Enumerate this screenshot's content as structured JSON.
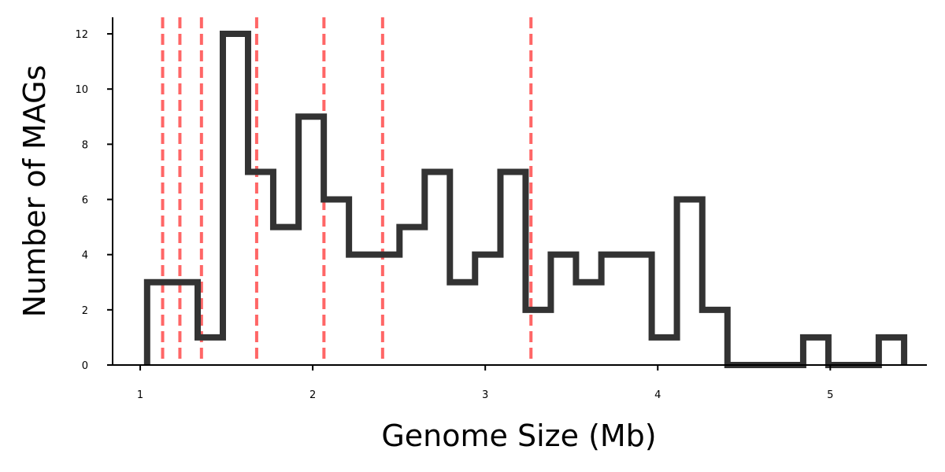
{
  "chart_data": {
    "type": "histogram",
    "xlabel": "Genome Size (Mb)",
    "ylabel": "Number of MAGs",
    "xlim": [
      0.84,
      5.56
    ],
    "ylim": [
      0,
      12.6
    ],
    "xticks": [
      1,
      2,
      3,
      4,
      5
    ],
    "yticks": [
      0,
      2,
      4,
      6,
      8,
      10,
      12
    ],
    "bin_edges": [
      1.04,
      1.186,
      1.333,
      1.479,
      1.625,
      1.771,
      1.918,
      2.064,
      2.21,
      2.356,
      2.503,
      2.649,
      2.795,
      2.941,
      3.088,
      3.234,
      3.38,
      3.526,
      3.673,
      3.819,
      3.965,
      4.111,
      4.258,
      4.404,
      4.55,
      4.696,
      4.843,
      4.989,
      5.135,
      5.281,
      5.428
    ],
    "counts": [
      3,
      3,
      1,
      12,
      7,
      5,
      9,
      6,
      4,
      4,
      5,
      7,
      3,
      4,
      7,
      2,
      4,
      3,
      4,
      4,
      1,
      6,
      2,
      0,
      0,
      0,
      1,
      0,
      0,
      1
    ],
    "reference_lines": [
      1.13,
      1.23,
      1.355,
      1.675,
      2.065,
      2.405,
      3.265
    ],
    "colors": {
      "histogram": "#333333",
      "reference_line": "#ff6666"
    }
  }
}
